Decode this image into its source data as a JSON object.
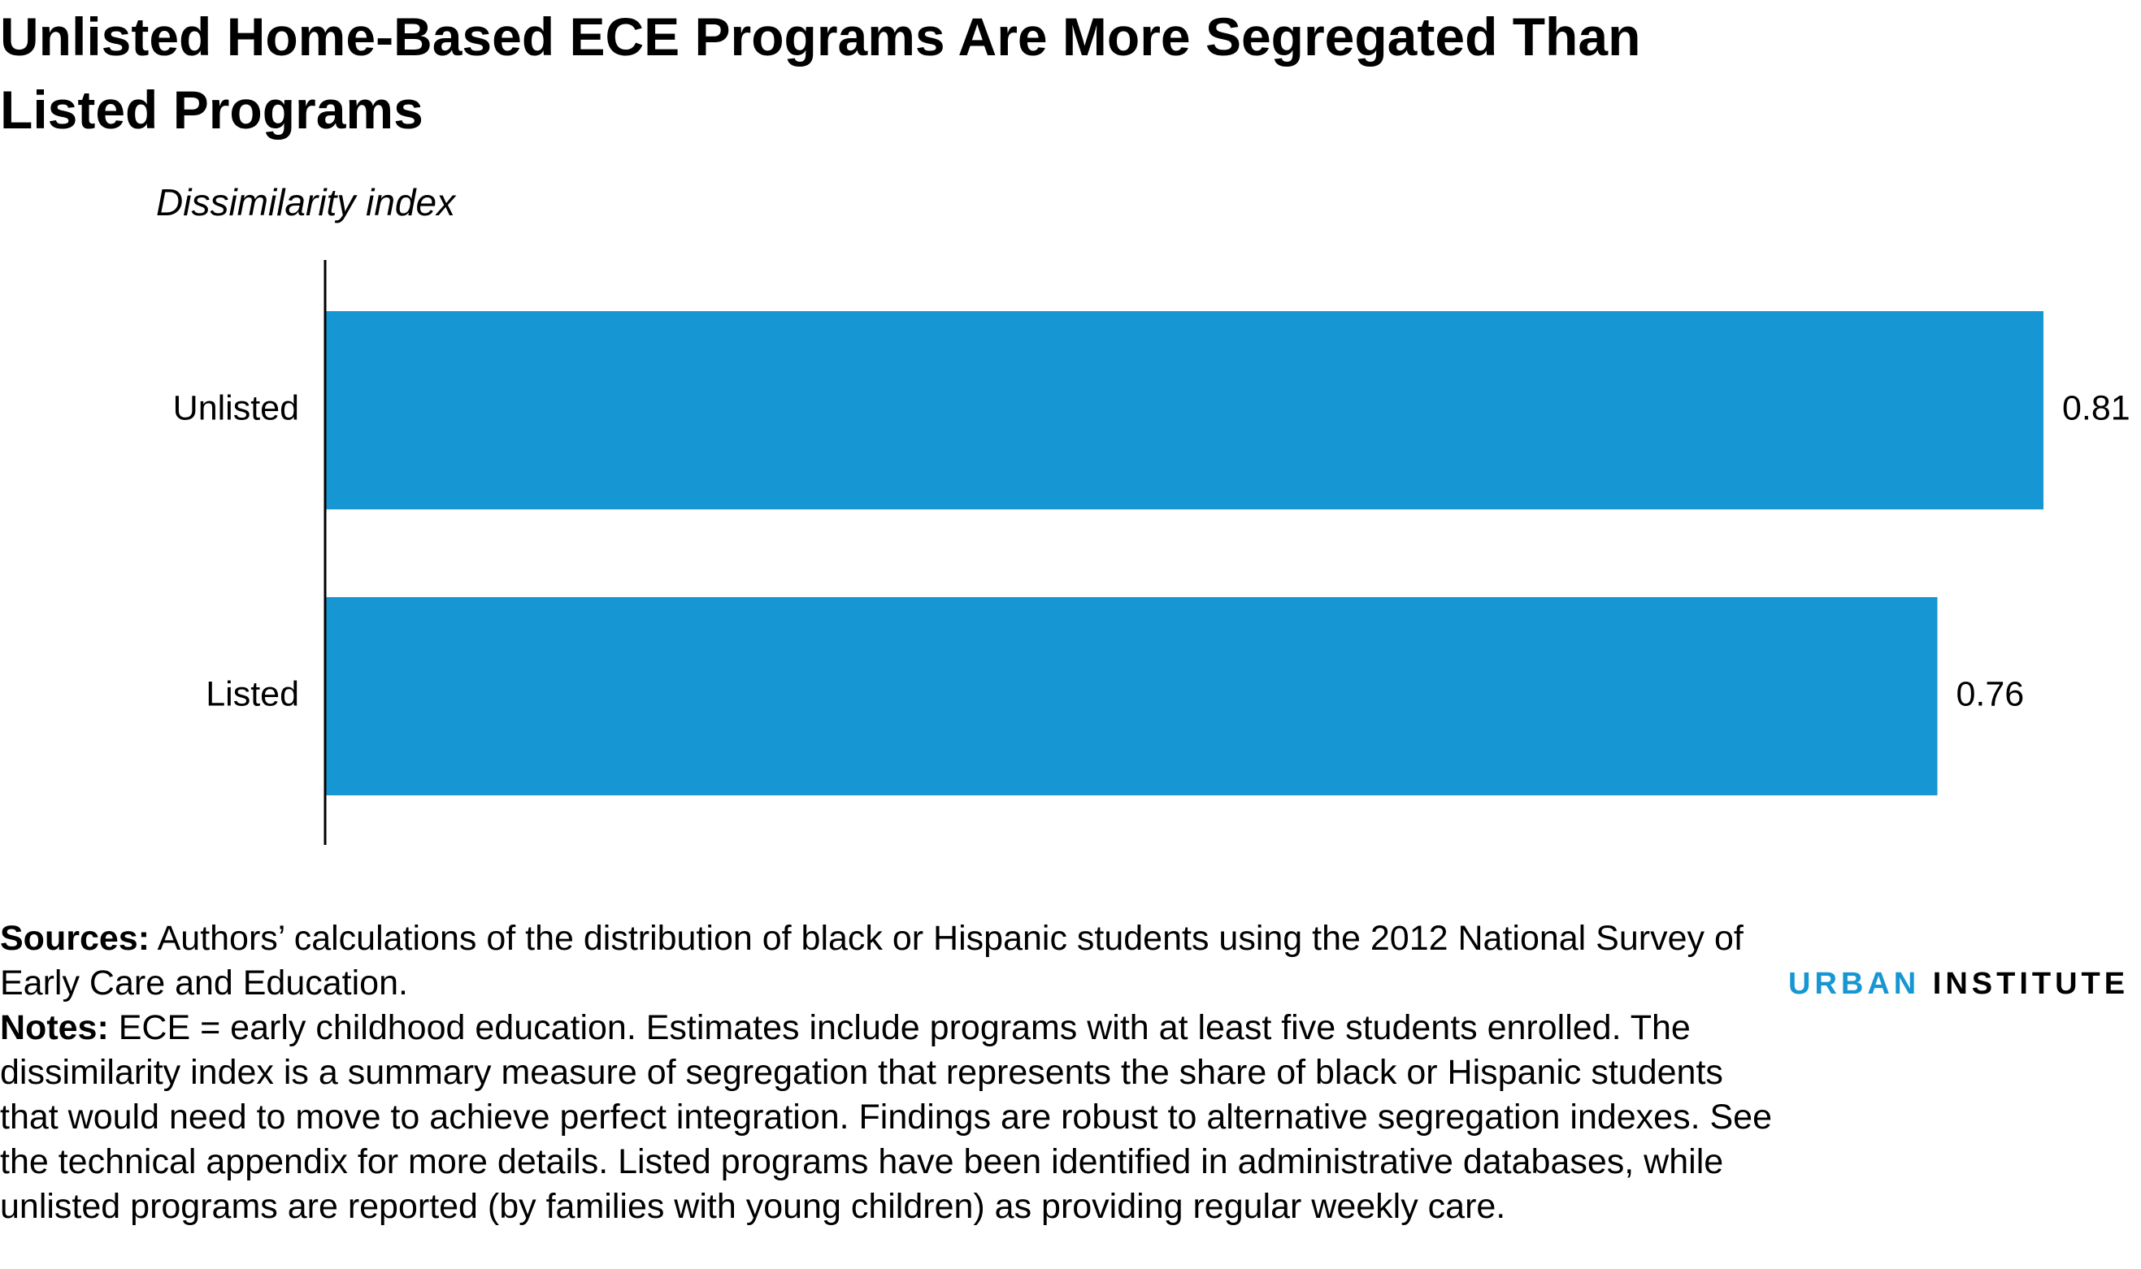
{
  "chart_data": {
    "type": "bar",
    "orientation": "horizontal",
    "title": "Unlisted Home-Based ECE Programs Are More Segregated Than Listed Programs",
    "x_label": "Dissimilarity index",
    "categories": [
      "Unlisted",
      "Listed"
    ],
    "values": [
      0.81,
      0.76
    ],
    "color": "#1696d2",
    "sources_label": "Sources:",
    "sources": "Authors’ calculations of the distribution of black or Hispanic students using the 2012 National Survey of Early Care and Education.",
    "notes_label": "Notes:",
    "notes": "ECE = early childhood education. Estimates include programs with at least five students enrolled. The dissimilarity index is a summary measure of segregation that represents the share of black or Hispanic students that would need to move to achieve perfect integration. Findings are robust to alternative segregation indexes. See the technical appendix for more details. Listed programs have been identified in administrative databases, while unlisted programs are reported (by families with young children) as providing regular weekly care.",
    "logo_1": "URBAN",
    "logo_2": "INSTITUTE"
  }
}
